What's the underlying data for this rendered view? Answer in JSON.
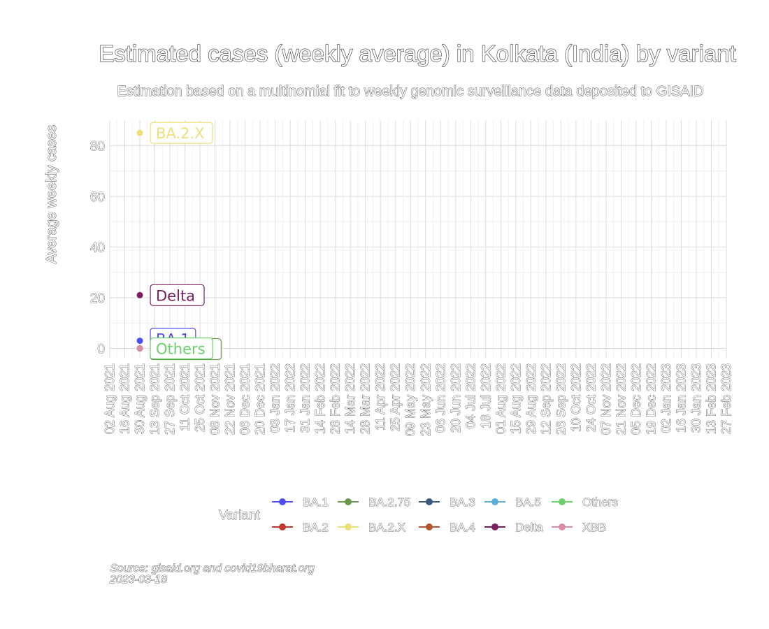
{
  "chart_data": {
    "type": "scatter",
    "title": "Estimated cases (weekly average) in Kolkata (India) by variant",
    "subtitle": "Estimation based on a multinomial fit to weekly genomic surveillance data deposited to GISAID",
    "xlabel": "",
    "ylabel": "Average weekly cases",
    "ylim": [
      -4,
      90
    ],
    "y_ticks": [
      0,
      20,
      40,
      60,
      80
    ],
    "grid": true,
    "x_tick_labels": [
      "02 Aug 2021",
      "16 Aug 2021",
      "30 Aug 2021",
      "13 Sep 2021",
      "27 Sep 2021",
      "11 Oct 2021",
      "25 Oct 2021",
      "08 Nov 2021",
      "22 Nov 2021",
      "06 Dec 2021",
      "20 Dec 2021",
      "03 Jan 2022",
      "17 Jan 2022",
      "31 Jan 2022",
      "14 Feb 2022",
      "28 Feb 2022",
      "14 Mar 2022",
      "28 Mar 2022",
      "11 Apr 2022",
      "25 Apr 2022",
      "09 May 2022",
      "23 May 2022",
      "06 Jun 2022",
      "20 Jun 2022",
      "04 Jul 2022",
      "18 Jul 2022",
      "01 Aug 2022",
      "15 Aug 2022",
      "29 Aug 2022",
      "12 Sep 2022",
      "26 Sep 2022",
      "10 Oct 2022",
      "24 Oct 2022",
      "07 Nov 2022",
      "21 Nov 2022",
      "05 Dec 2022",
      "19 Dec 2022",
      "02 Jan 2023",
      "16 Jan 2023",
      "30 Jan 2023",
      "13 Feb 2023",
      "27 Feb 2023"
    ],
    "legend_title": "Variant",
    "legend_position": "bottom",
    "series": [
      {
        "name": "BA.1",
        "color": "#5050f0",
        "points": [
          {
            "x": "30 Aug 2021",
            "y": 3
          }
        ],
        "label": "BA.1"
      },
      {
        "name": "BA.2",
        "color": "#c0392b",
        "points": [
          {
            "x": "30 Aug 2021",
            "y": 0
          }
        ],
        "label": ""
      },
      {
        "name": "BA.2.75",
        "color": "#6a994e",
        "points": [
          {
            "x": "30 Aug 2021",
            "y": 0
          }
        ],
        "label": "BA.2.75"
      },
      {
        "name": "BA.2.X",
        "color": "#ede07a",
        "points": [
          {
            "x": "30 Aug 2021",
            "y": 85
          }
        ],
        "label": "BA.2.X"
      },
      {
        "name": "BA.3",
        "color": "#3d5a80",
        "points": [
          {
            "x": "30 Aug 2021",
            "y": 0
          }
        ],
        "label": ""
      },
      {
        "name": "BA.4",
        "color": "#b5562f",
        "points": [
          {
            "x": "30 Aug 2021",
            "y": 0
          }
        ],
        "label": ""
      },
      {
        "name": "BA.5",
        "color": "#5aafd8",
        "points": [
          {
            "x": "30 Aug 2021",
            "y": 0
          }
        ],
        "label": ""
      },
      {
        "name": "Delta",
        "color": "#7b1f5e",
        "points": [
          {
            "x": "30 Aug 2021",
            "y": 21
          }
        ],
        "label": "Delta"
      },
      {
        "name": "Others",
        "color": "#6ad06a",
        "points": [
          {
            "x": "30 Aug 2021",
            "y": 0
          }
        ],
        "label": "Others"
      },
      {
        "name": "XBB",
        "color": "#d98ea6",
        "points": [
          {
            "x": "30 Aug 2021",
            "y": 0
          }
        ],
        "label": ""
      }
    ],
    "caption_source": "Source: gisaid.org and covid19bharat.org",
    "caption_date": "2023-03-18"
  }
}
